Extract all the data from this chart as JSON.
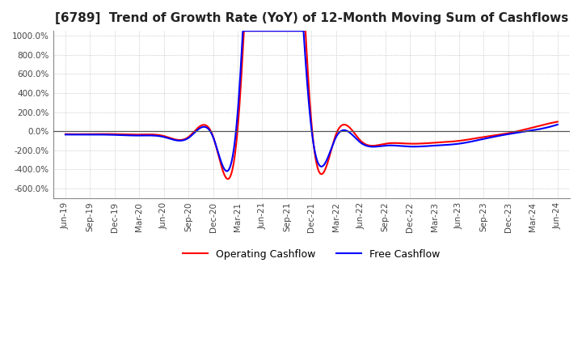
{
  "title": "[6789]  Trend of Growth Rate (YoY) of 12-Month Moving Sum of Cashflows",
  "title_fontsize": 11,
  "ylim": [
    -700,
    1050
  ],
  "yticks": [
    -600,
    -400,
    -200,
    0,
    200,
    400,
    600,
    800,
    1000
  ],
  "grid_color": "#aaaaaa",
  "background_color": "#ffffff",
  "operating_color": "#ff0000",
  "free_color": "#0000ff",
  "legend_labels": [
    "Operating Cashflow",
    "Free Cashflow"
  ],
  "x_labels": [
    "Jun-19",
    "Sep-19",
    "Dec-19",
    "Mar-20",
    "Jun-20",
    "Sep-20",
    "Dec-20",
    "Mar-21",
    "Jun-21",
    "Sep-21",
    "Dec-21",
    "Mar-22",
    "Jun-22",
    "Sep-22",
    "Dec-22",
    "Mar-23",
    "Jun-23",
    "Sep-23",
    "Dec-23",
    "Mar-24",
    "Jun-24"
  ],
  "operating_y": [
    -30,
    -30,
    -30,
    -35,
    -50,
    -60,
    -55,
    30,
    5000,
    5000,
    80,
    -30,
    -100,
    -130,
    -130,
    -120,
    -100,
    -60,
    -20,
    40,
    100
  ],
  "free_y": [
    -35,
    -35,
    -38,
    -45,
    -60,
    -70,
    -60,
    200,
    5000,
    4000,
    20,
    -60,
    -120,
    -150,
    -160,
    -150,
    -130,
    -80,
    -30,
    10,
    70
  ]
}
